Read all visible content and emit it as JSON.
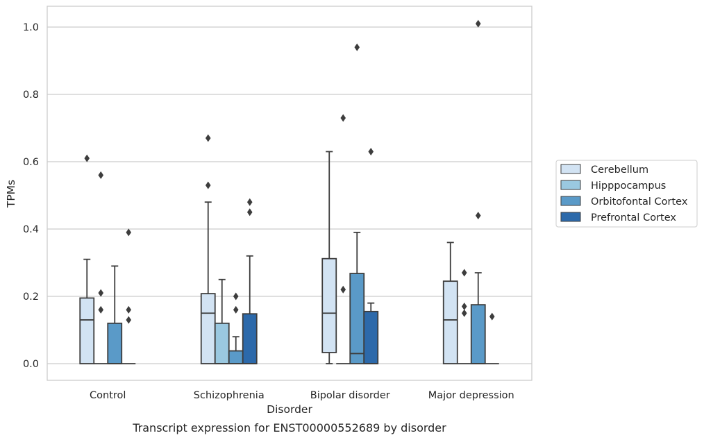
{
  "caption": "Transcript expression for ENST00000552689 by disorder",
  "chart_data": {
    "type": "box",
    "xlabel": "Disorder",
    "ylabel": "TPMs",
    "ylim": [
      -0.048,
      1.062
    ],
    "yticks": [
      "0.0",
      "0.2",
      "0.4",
      "0.6",
      "0.8",
      "1.0"
    ],
    "grid": "horizontal",
    "legend_position": "right",
    "categories": [
      "Control",
      "Schizophrenia",
      "Bipolar disorder",
      "Major depression"
    ],
    "series": [
      {
        "name": "Cerebellum",
        "color": "#d2e3f3",
        "boxes": [
          {
            "q1": 0.0,
            "median": 0.13,
            "q3": 0.195,
            "whisker_low": 0.0,
            "whisker_high": 0.31,
            "outliers": [
              0.61
            ]
          },
          {
            "q1": 0.0,
            "median": 0.15,
            "q3": 0.208,
            "whisker_low": 0.0,
            "whisker_high": 0.48,
            "outliers": [
              0.53,
              0.67
            ]
          },
          {
            "q1": 0.033,
            "median": 0.15,
            "q3": 0.312,
            "whisker_low": 0.0,
            "whisker_high": 0.63,
            "outliers": []
          },
          {
            "q1": 0.0,
            "median": 0.13,
            "q3": 0.245,
            "whisker_low": 0.0,
            "whisker_high": 0.36,
            "outliers": []
          }
        ]
      },
      {
        "name": "Hipppocampus",
        "color": "#9ac8e0",
        "boxes": [
          {
            "q1": 0.0,
            "median": 0.0,
            "q3": 0.0,
            "whisker_low": 0.0,
            "whisker_high": 0.0,
            "outliers": [
              0.16,
              0.21,
              0.56
            ]
          },
          {
            "q1": 0.0,
            "median": 0.0,
            "q3": 0.12,
            "whisker_low": 0.0,
            "whisker_high": 0.25,
            "outliers": []
          },
          {
            "q1": 0.0,
            "median": 0.0,
            "q3": 0.0,
            "whisker_low": 0.0,
            "whisker_high": 0.0,
            "outliers": [
              0.22,
              0.73
            ]
          },
          {
            "q1": 0.0,
            "median": 0.0,
            "q3": 0.0,
            "whisker_low": 0.0,
            "whisker_high": 0.0,
            "outliers": [
              0.15,
              0.17,
              0.27
            ]
          }
        ]
      },
      {
        "name": "Orbitofontal Cortex",
        "color": "#5a9ac8",
        "boxes": [
          {
            "q1": 0.0,
            "median": 0.0,
            "q3": 0.12,
            "whisker_low": 0.0,
            "whisker_high": 0.29,
            "outliers": []
          },
          {
            "q1": 0.0,
            "median": 0.0,
            "q3": 0.038,
            "whisker_low": 0.0,
            "whisker_high": 0.08,
            "outliers": [
              0.16,
              0.2
            ]
          },
          {
            "q1": 0.0,
            "median": 0.03,
            "q3": 0.268,
            "whisker_low": 0.0,
            "whisker_high": 0.39,
            "outliers": [
              0.94
            ]
          },
          {
            "q1": 0.0,
            "median": 0.0,
            "q3": 0.175,
            "whisker_low": 0.0,
            "whisker_high": 0.27,
            "outliers": [
              0.44,
              1.01
            ]
          }
        ]
      },
      {
        "name": "Prefrontal Cortex",
        "color": "#2c69aa",
        "boxes": [
          {
            "q1": 0.0,
            "median": 0.0,
            "q3": 0.0,
            "whisker_low": 0.0,
            "whisker_high": 0.0,
            "outliers": [
              0.13,
              0.16,
              0.39
            ]
          },
          {
            "q1": 0.0,
            "median": 0.0,
            "q3": 0.148,
            "whisker_low": 0.0,
            "whisker_high": 0.32,
            "outliers": [
              0.45,
              0.48
            ]
          },
          {
            "q1": 0.0,
            "median": 0.0,
            "q3": 0.155,
            "whisker_low": 0.0,
            "whisker_high": 0.18,
            "outliers": [
              0.63
            ]
          },
          {
            "q1": 0.0,
            "median": 0.0,
            "q3": 0.0,
            "whisker_low": 0.0,
            "whisker_high": 0.0,
            "outliers": [
              0.14
            ]
          }
        ]
      }
    ]
  }
}
